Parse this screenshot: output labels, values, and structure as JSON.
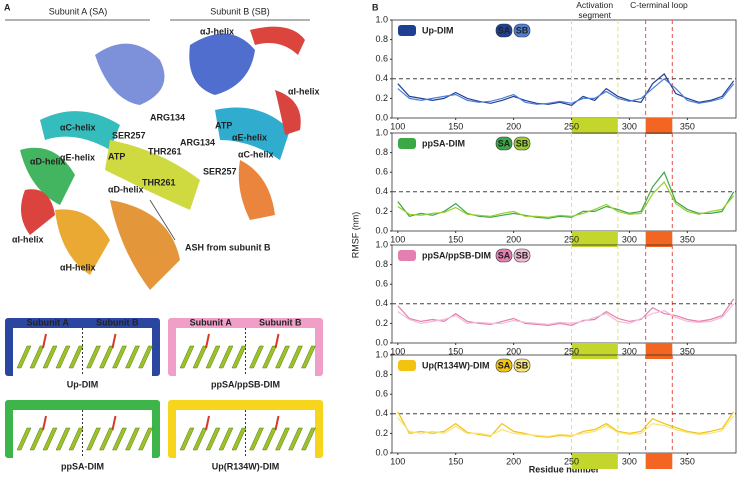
{
  "panel_a": {
    "letter": "A",
    "subunits": [
      "Subunit A (SA)",
      "Subunit B (SB)"
    ],
    "structure_labels": [
      "αJ-helix",
      "αI-helix",
      "αC-helix",
      "SER257",
      "ARG134",
      "ATP",
      "αE-helix",
      "ARG134",
      "THR261",
      "ATP",
      "αD-helix",
      "αC-helix",
      "αD-helix",
      "THR261",
      "SER257",
      "αE-helix",
      "αI-helix",
      "αH-helix",
      "ASH from subunit B"
    ],
    "inset_headers": [
      "Subunit A",
      "Subunit B"
    ],
    "insets": [
      {
        "name": "Up-DIM",
        "color": "#2a46a0"
      },
      {
        "name": "ppSA/ppSB-DIM",
        "color": "#f0a0c8"
      },
      {
        "name": "ppSA-DIM",
        "color": "#3db54a"
      },
      {
        "name": "Up(R134W)-DIM",
        "color": "#f7d51c"
      }
    ]
  },
  "panel_b": {
    "letter": "B",
    "y_label": "RMSF (nm)",
    "x_label": "Residue number",
    "reference_line": 0.4,
    "regions": [
      {
        "label": "Activation segment",
        "start": 250,
        "end": 290,
        "color": "#c3d62b",
        "line_color": "#e3e36a"
      },
      {
        "label": "C-terminal loop",
        "start": 314,
        "end": 337,
        "color": "#f26522",
        "line_color": "#e8504a"
      }
    ]
  },
  "chart_data": [
    {
      "type": "line",
      "label": "Up-DIM",
      "x": [
        100,
        110,
        120,
        130,
        140,
        150,
        160,
        170,
        180,
        190,
        200,
        210,
        220,
        230,
        240,
        250,
        260,
        270,
        280,
        290,
        300,
        310,
        320,
        330,
        340,
        350,
        360,
        370,
        380,
        390
      ],
      "xlim": [
        95,
        392
      ],
      "xticks": [
        100,
        150,
        200,
        250,
        300,
        350
      ],
      "ylim": [
        0,
        1
      ],
      "yticks": [
        {
          "value": 0,
          "label": "0.0"
        },
        0.2,
        0.4,
        0.6,
        0.8,
        {
          "value": 1,
          "label": "1.0"
        }
      ],
      "series": [
        {
          "name": "SA",
          "color": "#1f3f95",
          "values": [
            0.35,
            0.22,
            0.2,
            0.18,
            0.2,
            0.26,
            0.2,
            0.17,
            0.15,
            0.18,
            0.22,
            0.18,
            0.15,
            0.14,
            0.16,
            0.13,
            0.22,
            0.18,
            0.3,
            0.22,
            0.18,
            0.16,
            0.35,
            0.45,
            0.25,
            0.2,
            0.16,
            0.18,
            0.22,
            0.38
          ]
        },
        {
          "name": "SB",
          "color": "#4f7fd6",
          "values": [
            0.3,
            0.2,
            0.18,
            0.2,
            0.22,
            0.24,
            0.18,
            0.16,
            0.17,
            0.2,
            0.24,
            0.16,
            0.14,
            0.15,
            0.17,
            0.15,
            0.2,
            0.2,
            0.27,
            0.2,
            0.17,
            0.2,
            0.3,
            0.4,
            0.3,
            0.18,
            0.15,
            0.17,
            0.2,
            0.35
          ]
        }
      ]
    },
    {
      "type": "line",
      "label": "ppSA-DIM",
      "x": [
        100,
        110,
        120,
        130,
        140,
        150,
        160,
        170,
        180,
        190,
        200,
        210,
        220,
        230,
        240,
        250,
        260,
        270,
        280,
        290,
        300,
        310,
        320,
        330,
        340,
        350,
        360,
        370,
        380,
        390
      ],
      "xlim": [
        95,
        392
      ],
      "xticks": [
        100,
        150,
        200,
        250,
        300,
        350
      ],
      "ylim": [
        0,
        1
      ],
      "yticks": [
        {
          "value": 0,
          "label": "0.0"
        },
        0.2,
        0.4,
        0.6,
        0.8,
        {
          "value": 1,
          "label": "1.0"
        }
      ],
      "series": [
        {
          "name": "SA",
          "color": "#3aa845",
          "values": [
            0.3,
            0.15,
            0.18,
            0.16,
            0.2,
            0.28,
            0.18,
            0.15,
            0.14,
            0.16,
            0.18,
            0.16,
            0.14,
            0.13,
            0.15,
            0.14,
            0.2,
            0.2,
            0.25,
            0.22,
            0.18,
            0.2,
            0.45,
            0.6,
            0.3,
            0.22,
            0.18,
            0.18,
            0.2,
            0.4
          ]
        },
        {
          "name": "SB",
          "color": "#9acd32",
          "values": [
            0.25,
            0.17,
            0.16,
            0.18,
            0.19,
            0.24,
            0.17,
            0.16,
            0.15,
            0.18,
            0.2,
            0.15,
            0.15,
            0.14,
            0.16,
            0.15,
            0.18,
            0.22,
            0.27,
            0.2,
            0.17,
            0.18,
            0.38,
            0.5,
            0.28,
            0.2,
            0.17,
            0.2,
            0.22,
            0.36
          ]
        }
      ]
    },
    {
      "type": "line",
      "label": "ppSA/ppSB-DIM",
      "x": [
        100,
        110,
        120,
        130,
        140,
        150,
        160,
        170,
        180,
        190,
        200,
        210,
        220,
        230,
        240,
        250,
        260,
        270,
        280,
        290,
        300,
        310,
        320,
        330,
        340,
        350,
        360,
        370,
        380,
        390
      ],
      "xlim": [
        95,
        392
      ],
      "xticks": [
        100,
        150,
        200,
        250,
        300,
        350
      ],
      "ylim": [
        0,
        1
      ],
      "yticks": [
        {
          "value": 0,
          "label": "0.0"
        },
        0.2,
        0.4,
        0.6,
        0.8,
        {
          "value": 1,
          "label": "1.0"
        }
      ],
      "series": [
        {
          "name": "SA",
          "color": "#e57fb0",
          "values": [
            0.38,
            0.25,
            0.22,
            0.24,
            0.22,
            0.3,
            0.22,
            0.2,
            0.19,
            0.22,
            0.25,
            0.2,
            0.19,
            0.18,
            0.2,
            0.18,
            0.23,
            0.24,
            0.32,
            0.25,
            0.22,
            0.24,
            0.36,
            0.3,
            0.28,
            0.24,
            0.22,
            0.24,
            0.28,
            0.45
          ]
        },
        {
          "name": "SB",
          "color": "#f3bcd6",
          "values": [
            0.32,
            0.24,
            0.2,
            0.22,
            0.24,
            0.28,
            0.2,
            0.21,
            0.2,
            0.2,
            0.23,
            0.21,
            0.2,
            0.19,
            0.21,
            0.2,
            0.22,
            0.26,
            0.3,
            0.22,
            0.2,
            0.25,
            0.3,
            0.33,
            0.26,
            0.22,
            0.21,
            0.22,
            0.26,
            0.4
          ]
        }
      ]
    },
    {
      "type": "line",
      "label": "Up(R134W)-DIM",
      "x": [
        100,
        110,
        120,
        130,
        140,
        150,
        160,
        170,
        180,
        190,
        200,
        210,
        220,
        230,
        240,
        250,
        260,
        270,
        280,
        290,
        300,
        310,
        320,
        330,
        340,
        350,
        360,
        370,
        380,
        390
      ],
      "xlim": [
        95,
        392
      ],
      "xticks": [
        100,
        150,
        200,
        250,
        300,
        350
      ],
      "ylim": [
        0,
        1
      ],
      "yticks": [
        {
          "value": 0,
          "label": "0.0"
        },
        0.2,
        0.4,
        0.6,
        0.8,
        {
          "value": 1,
          "label": "1.0"
        }
      ],
      "series": [
        {
          "name": "SA",
          "color": "#f2c40f",
          "values": [
            0.42,
            0.2,
            0.22,
            0.2,
            0.22,
            0.3,
            0.21,
            0.19,
            0.17,
            0.3,
            0.22,
            0.2,
            0.17,
            0.16,
            0.18,
            0.17,
            0.22,
            0.24,
            0.3,
            0.22,
            0.2,
            0.22,
            0.35,
            0.3,
            0.26,
            0.22,
            0.2,
            0.22,
            0.25,
            0.42
          ]
        },
        {
          "name": "SB",
          "color": "#f9e37a",
          "values": [
            0.36,
            0.22,
            0.2,
            0.22,
            0.2,
            0.27,
            0.2,
            0.2,
            0.18,
            0.24,
            0.2,
            0.19,
            0.18,
            0.17,
            0.19,
            0.18,
            0.2,
            0.22,
            0.28,
            0.21,
            0.19,
            0.2,
            0.3,
            0.28,
            0.24,
            0.21,
            0.19,
            0.2,
            0.23,
            0.38
          ]
        }
      ]
    }
  ]
}
